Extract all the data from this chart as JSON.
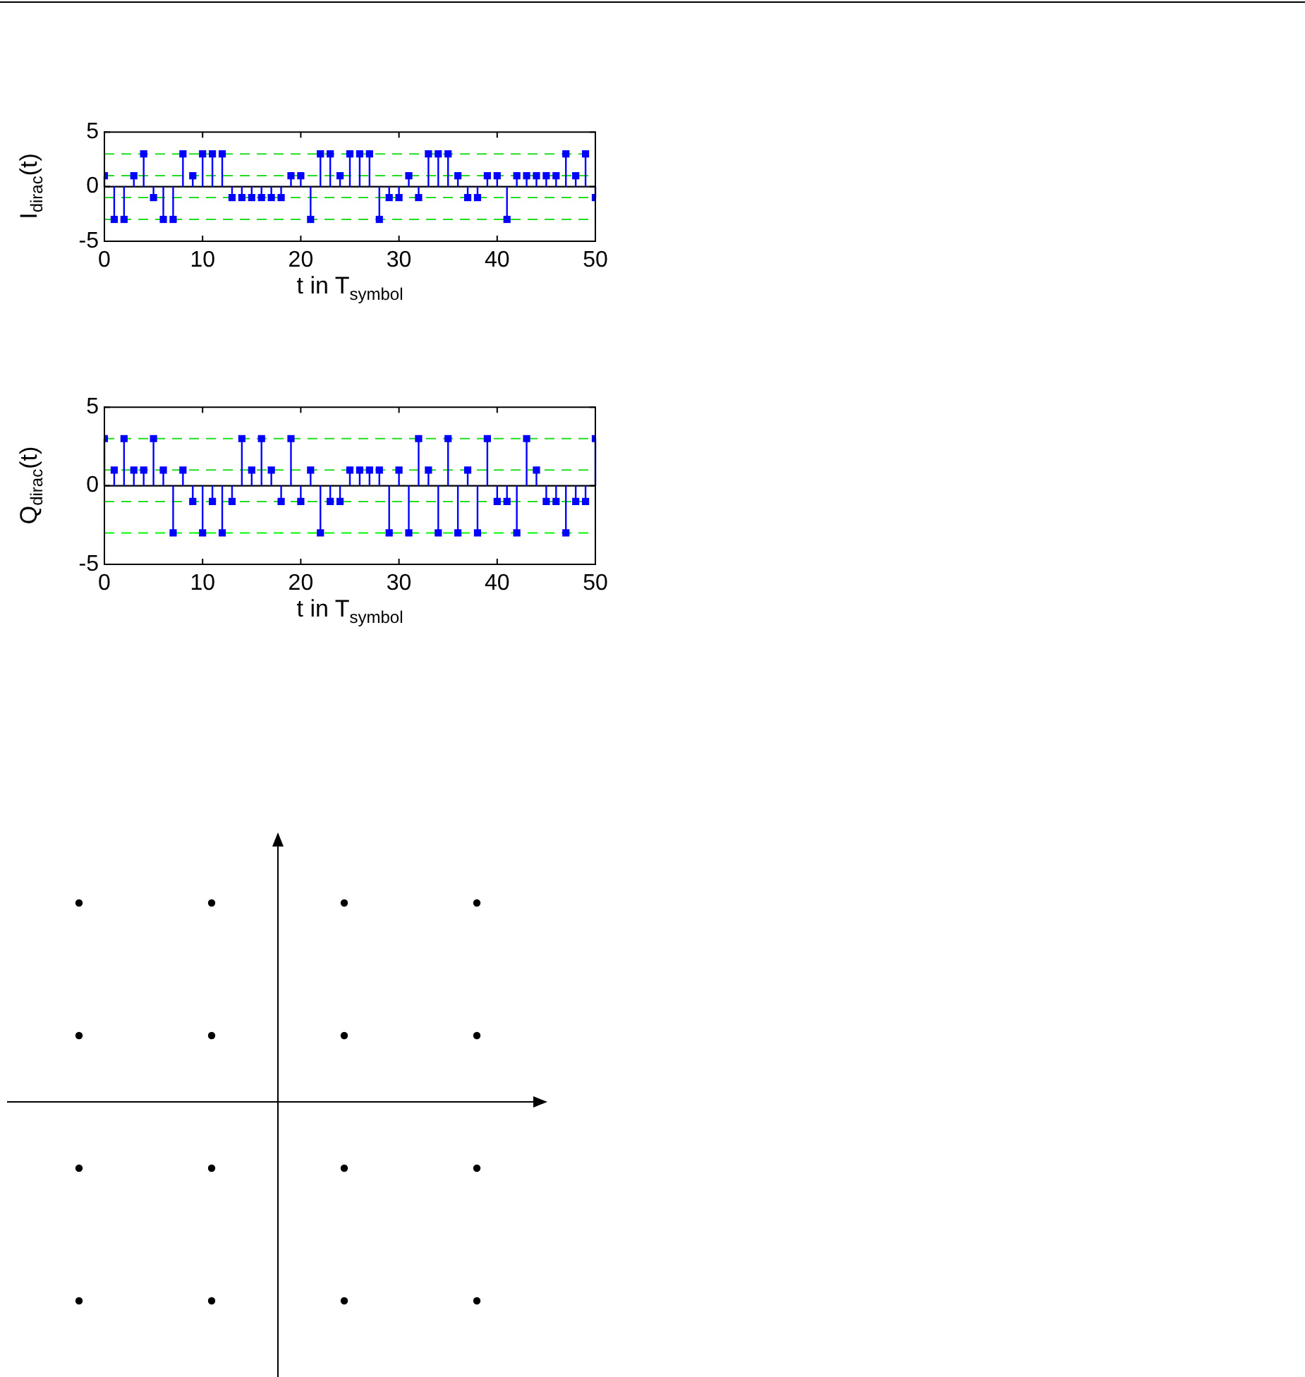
{
  "chart_data": [
    {
      "type": "lollipop",
      "ylabel": "I$_{dirac}$(t)",
      "xlabel": "t in T$_{symbol}$",
      "x": [
        0,
        1,
        2,
        3,
        4,
        5,
        6,
        7,
        8,
        9,
        10,
        11,
        12,
        13,
        14,
        15,
        16,
        17,
        18,
        19,
        20,
        21,
        22,
        23,
        24,
        25,
        26,
        27,
        28,
        29,
        30,
        31,
        32,
        33,
        34,
        35,
        36,
        37,
        38,
        39,
        40,
        41,
        42,
        43,
        44,
        45,
        46,
        47,
        48,
        49,
        50
      ],
      "values": [
        1,
        -3,
        -3,
        1,
        3,
        -1,
        -3,
        -3,
        3,
        1,
        3,
        3,
        3,
        -1,
        -1,
        -1,
        -1,
        -1,
        -1,
        1,
        1,
        -3,
        3,
        3,
        1,
        3,
        3,
        3,
        -3,
        -1,
        -1,
        1,
        -1,
        3,
        3,
        3,
        1,
        -1,
        -1,
        1,
        1,
        -3,
        1,
        1,
        1,
        1,
        1,
        3,
        1,
        3,
        -1
      ],
      "color": "#0000ff",
      "marker": "square",
      "xlim": [
        0,
        50
      ],
      "xticks": [
        0,
        10,
        20,
        30,
        40,
        50
      ],
      "ylim": [
        -5,
        5
      ],
      "yticks": [
        -5,
        0,
        5
      ],
      "ref_lines": [
        {
          "axis": "y",
          "value": 3,
          "color": "#22dd22",
          "line_style": "dashed"
        },
        {
          "axis": "y",
          "value": 1,
          "color": "#22dd22",
          "line_style": "dashed"
        },
        {
          "axis": "y",
          "value": -1,
          "color": "#22dd22",
          "line_style": "dashed"
        },
        {
          "axis": "y",
          "value": -3,
          "color": "#22dd22",
          "line_style": "dashed"
        }
      ]
    },
    {
      "type": "lollipop",
      "ylabel": "Q$_{dirac}$(t)",
      "xlabel": "t in T$_{symbol}$",
      "x": [
        0,
        1,
        2,
        3,
        4,
        5,
        6,
        7,
        8,
        9,
        10,
        11,
        12,
        13,
        14,
        15,
        16,
        17,
        18,
        19,
        20,
        21,
        22,
        23,
        24,
        25,
        26,
        27,
        28,
        29,
        30,
        31,
        32,
        33,
        34,
        35,
        36,
        37,
        38,
        39,
        40,
        41,
        42,
        43,
        44,
        45,
        46,
        47,
        48,
        49,
        50
      ],
      "values": [
        3,
        1,
        3,
        1,
        1,
        3,
        1,
        -3,
        1,
        -1,
        -3,
        -1,
        -3,
        -1,
        3,
        1,
        3,
        1,
        -1,
        3,
        -1,
        1,
        -3,
        -1,
        -1,
        1,
        1,
        1,
        1,
        -3,
        1,
        -3,
        3,
        1,
        -3,
        3,
        -3,
        1,
        -3,
        3,
        -1,
        -1,
        -3,
        3,
        1,
        -1,
        -1,
        -3,
        -1,
        -1,
        3
      ],
      "color": "#0000ff",
      "marker": "square",
      "xlim": [
        0,
        50
      ],
      "xticks": [
        0,
        10,
        20,
        30,
        40,
        50
      ],
      "ylim": [
        -5,
        5
      ],
      "yticks": [
        -5,
        0,
        5
      ],
      "ref_lines": [
        {
          "axis": "y",
          "value": 3,
          "color": "#22dd22",
          "line_style": "dashed"
        },
        {
          "axis": "y",
          "value": 1,
          "color": "#22dd22",
          "line_style": "dashed"
        },
        {
          "axis": "y",
          "value": -1,
          "color": "#22dd22",
          "line_style": "dashed"
        },
        {
          "axis": "y",
          "value": -3,
          "color": "#00ff00",
          "line_style": "dashed"
        }
      ]
    },
    {
      "type": "other"
    }
  ]
}
